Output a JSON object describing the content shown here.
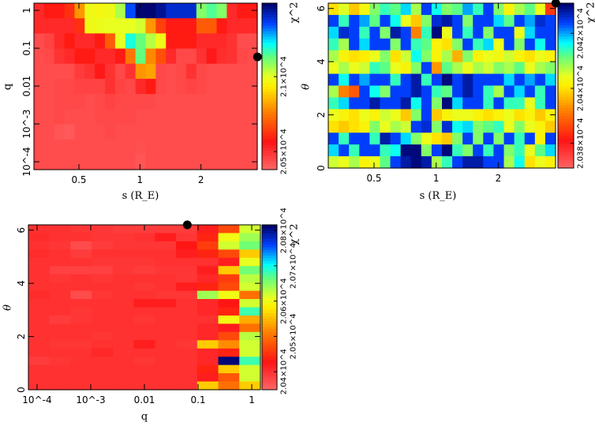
{
  "colors": {
    "palette": [
      "#ff6666",
      "#ff1414",
      "#ff8000",
      "#ffee00",
      "#e8ff20",
      "#60ff80",
      "#00ffff",
      "#0040ff",
      "#000066"
    ],
    "marker": "#000000"
  },
  "chart_data": [
    {
      "type": "heatmap",
      "xlabel": "s (R_E)",
      "ylabel": "q",
      "colorbar_label": "χ^2",
      "xscale": "log",
      "yscale": "log",
      "xlim": [
        0.3,
        3.79
      ],
      "ylim": [
        6.2e-05,
        1.55
      ],
      "xticks": [
        {
          "v": 0.5,
          "t": "0.5"
        },
        {
          "v": 1,
          "t": "1"
        },
        {
          "v": 2,
          "t": "2"
        }
      ],
      "yticks": [
        {
          "v": 1,
          "t": "1"
        },
        {
          "v": 0.1,
          "t": "0.1"
        },
        {
          "v": 0.01,
          "t": "0.01"
        },
        {
          "v": 0.001,
          "t": "10^-3"
        },
        {
          "v": 0.0001,
          "t": "10^-4"
        }
      ],
      "crange": [
        20380,
        21490
      ],
      "cticks": [
        {
          "v": 20500,
          "t": "2.05×10^4"
        },
        {
          "v": 21000,
          "t": "2.1×10^4"
        }
      ],
      "best_fit": {
        "x": 3.8,
        "y": 0.059
      },
      "rows_top_to_bottom": [
        [
          20520,
          20580,
          20580,
          20620,
          20800,
          20980,
          20970,
          20980,
          21060,
          21350,
          21480,
          21480,
          21450,
          21400,
          21400,
          21400,
          21100,
          21150,
          21100,
          20520,
          20580,
          20580
        ],
        [
          20520,
          20520,
          20520,
          20520,
          20620,
          20980,
          20990,
          21000,
          21000,
          21000,
          21020,
          20800,
          20650,
          20580,
          20580,
          20580,
          20700,
          20700,
          20580,
          20520,
          20520,
          20520
        ],
        [
          20440,
          20460,
          20520,
          20580,
          20520,
          20520,
          20580,
          20700,
          21000,
          21200,
          21130,
          21050,
          20980,
          20580,
          20580,
          20580,
          20520,
          20520,
          20520,
          20500,
          20440,
          20440
        ],
        [
          20440,
          20450,
          20500,
          20520,
          20580,
          20580,
          20520,
          20520,
          20580,
          20750,
          21130,
          20780,
          20680,
          20520,
          20450,
          20450,
          20500,
          20560,
          20510,
          20500,
          20450,
          20440
        ],
        [
          20440,
          20440,
          20440,
          20440,
          20480,
          20500,
          20560,
          20500,
          20450,
          20500,
          20800,
          20820,
          20450,
          20440,
          20450,
          20500,
          20450,
          20440,
          20440,
          20440,
          20440,
          20440
        ],
        [
          20440,
          20440,
          20450,
          20450,
          20460,
          20460,
          20460,
          20500,
          20460,
          20450,
          20520,
          20580,
          20450,
          20440,
          20450,
          20460,
          20450,
          20440,
          20440,
          20440,
          20440,
          20440
        ],
        [
          20440,
          20440,
          20450,
          20450,
          20450,
          20440,
          20450,
          20460,
          20450,
          20450,
          20450,
          20450,
          20440,
          20440,
          20440,
          20440,
          20440,
          20440,
          20440,
          20440,
          20440,
          20440
        ],
        [
          20440,
          20440,
          20450,
          20440,
          20440,
          20440,
          20450,
          20450,
          20450,
          20450,
          20440,
          20440,
          20440,
          20440,
          20440,
          20440,
          20440,
          20440,
          20440,
          20440,
          20440,
          20440
        ],
        [
          20440,
          20440,
          20420,
          20410,
          20440,
          20440,
          20440,
          20450,
          20440,
          20440,
          20440,
          20440,
          20440,
          20440,
          20440,
          20440,
          20440,
          20440,
          20440,
          20440,
          20440,
          20440
        ],
        [
          20440,
          20440,
          20440,
          20440,
          20440,
          20440,
          20440,
          20440,
          20440,
          20440,
          20430,
          20440,
          20440,
          20440,
          20440,
          20440,
          20440,
          20440,
          20440,
          20440,
          20440,
          20440
        ],
        [
          20440,
          20440,
          20440,
          20440,
          20440,
          20440,
          20440,
          20440,
          20440,
          20440,
          20420,
          20440,
          20440,
          20440,
          20440,
          20440,
          20440,
          20440,
          20440,
          20440,
          20440,
          20440
        ]
      ]
    },
    {
      "type": "heatmap",
      "xlabel": "s (R_E)",
      "ylabel": "θ",
      "colorbar_label": "χ^2",
      "xscale": "log",
      "yscale": "linear",
      "xlim": [
        0.3,
        3.79
      ],
      "ylim": [
        0,
        6.2
      ],
      "xticks": [
        {
          "v": 0.5,
          "t": "0.5"
        },
        {
          "v": 1,
          "t": "1"
        },
        {
          "v": 2,
          "t": "2"
        }
      ],
      "yticks": [
        {
          "v": 0,
          "t": "0"
        },
        {
          "v": 2,
          "t": "2"
        },
        {
          "v": 4,
          "t": "4"
        },
        {
          "v": 6,
          "t": "6"
        }
      ],
      "crange": [
        20371,
        20431
      ],
      "cticks": [
        {
          "v": 20380,
          "t": "2.038×10^4"
        },
        {
          "v": 20400,
          "t": "2.04×10^4"
        },
        {
          "v": 20420,
          "t": "2.042×10^4"
        }
      ],
      "best_fit": {
        "x": 3.8,
        "y": 6.2
      },
      "rows_top_to_bottom": [
        [
          20400,
          20405,
          20398,
          20403,
          20410,
          20414,
          20412,
          20418,
          20408,
          20424,
          20416,
          20410,
          20412,
          20420,
          20414,
          20424,
          20410,
          20402,
          20408,
          20412,
          20404,
          20385
        ],
        [
          20424,
          20414,
          20424,
          20420,
          20412,
          20424,
          20416,
          20404,
          20398,
          20410,
          20426,
          20428,
          20424,
          20410,
          20424,
          20424,
          20418,
          20412,
          20424,
          20420,
          20426,
          20424
        ],
        [
          20418,
          20426,
          20424,
          20414,
          20424,
          20410,
          20428,
          20424,
          20392,
          20414,
          20430,
          20404,
          20424,
          20414,
          20424,
          20410,
          20424,
          20424,
          20404,
          20418,
          20424,
          20424
        ],
        [
          20414,
          20408,
          20424,
          20418,
          20424,
          20424,
          20410,
          20424,
          20414,
          20412,
          20402,
          20400,
          20410,
          20424,
          20414,
          20418,
          20404,
          20424,
          20410,
          20424,
          20416,
          20424
        ],
        [
          20408,
          20402,
          20400,
          20401,
          20404,
          20410,
          20400,
          20406,
          20416,
          20410,
          20402,
          20408,
          20396,
          20410,
          20402,
          20404,
          20403,
          20406,
          20402,
          20400,
          20404,
          20402
        ],
        [
          20404,
          20408,
          20404,
          20406,
          20414,
          20412,
          20404,
          20402,
          20410,
          20424,
          20394,
          20412,
          20408,
          20404,
          20408,
          20406,
          20410,
          20408,
          20412,
          20404,
          20408,
          20410
        ],
        [
          20424,
          20416,
          20424,
          20420,
          20424,
          20424,
          20414,
          20424,
          20428,
          20414,
          20424,
          20430,
          20424,
          20428,
          20424,
          20424,
          20424,
          20418,
          20424,
          20420,
          20424,
          20418
        ],
        [
          20408,
          20392,
          20388,
          20424,
          20416,
          20410,
          20424,
          20424,
          20428,
          20424,
          20414,
          20412,
          20424,
          20428,
          20424,
          20414,
          20408,
          20424,
          20418,
          20424,
          20414,
          20424
        ],
        [
          20414,
          20418,
          20424,
          20424,
          20428,
          20424,
          20424,
          20428,
          20416,
          20424,
          20410,
          20430,
          20418,
          20424,
          20424,
          20414,
          20424,
          20414,
          20414,
          20404,
          20414,
          20424
        ],
        [
          20404,
          20402,
          20400,
          20404,
          20402,
          20406,
          20404,
          20398,
          20410,
          20424,
          20398,
          20402,
          20404,
          20404,
          20402,
          20400,
          20402,
          20404,
          20400,
          20402,
          20398,
          20402
        ],
        [
          20400,
          20398,
          20400,
          20402,
          20410,
          20404,
          20408,
          20406,
          20424,
          20426,
          20410,
          20426,
          20416,
          20418,
          20410,
          20412,
          20414,
          20404,
          20410,
          20404,
          20402,
          20398
        ],
        [
          20424,
          20414,
          20424,
          20424,
          20414,
          20428,
          20424,
          20418,
          20410,
          20404,
          20400,
          20398,
          20410,
          20424,
          20410,
          20424,
          20410,
          20424,
          20414,
          20424,
          20402,
          20424
        ],
        [
          20418,
          20424,
          20414,
          20424,
          20424,
          20414,
          20416,
          20430,
          20430,
          20410,
          20424,
          20430,
          20414,
          20410,
          20424,
          20414,
          20424,
          20410,
          20414,
          20404,
          20412,
          20418
        ],
        [
          20406,
          20404,
          20408,
          20402,
          20404,
          20412,
          20424,
          20428,
          20430,
          20428,
          20408,
          20414,
          20424,
          20428,
          20428,
          20424,
          20424,
          20408,
          20416,
          20400,
          20404,
          20402
        ]
      ]
    },
    {
      "type": "heatmap",
      "xlabel": "q",
      "ylabel": "θ",
      "colorbar_label": "χ^2",
      "xscale": "log",
      "yscale": "linear",
      "xlim": [
        6.9e-05,
        1.45
      ],
      "ylim": [
        0,
        6.2
      ],
      "xticks": [
        {
          "v": 0.0001,
          "t": "10^-4"
        },
        {
          "v": 0.001,
          "t": "10^-3"
        },
        {
          "v": 0.01,
          "t": "0.01"
        },
        {
          "v": 0.1,
          "t": "0.1"
        },
        {
          "v": 1,
          "t": "1"
        }
      ],
      "yticks": [
        {
          "v": 0,
          "t": "0"
        },
        {
          "v": 2,
          "t": "2"
        },
        {
          "v": 4,
          "t": "4"
        },
        {
          "v": 6,
          "t": "6"
        }
      ],
      "crange": [
        20349,
        20816
      ],
      "cticks": [
        {
          "v": 20400,
          "t": "2.04×10^4"
        },
        {
          "v": 20500,
          "t": "2.05×10^4"
        },
        {
          "v": 20600,
          "t": "2.06×10^4"
        },
        {
          "v": 20700,
          "t": "2.07×10^4"
        },
        {
          "v": 20800,
          "t": "2.08×10^4"
        }
      ],
      "best_fit": {
        "x": 0.063,
        "y": 6.2
      },
      "rows_top_to_bottom": [
        [
          20400,
          20400,
          20395,
          20395,
          20390,
          20390,
          20390,
          20390,
          20420,
          20470,
          20620
        ],
        [
          20405,
          20400,
          20400,
          20395,
          20395,
          20400,
          20420,
          20395,
          20440,
          20600,
          20640
        ],
        [
          20400,
          20395,
          20375,
          20390,
          20395,
          20395,
          20395,
          20430,
          20460,
          20620,
          20660
        ],
        [
          20405,
          20400,
          20390,
          20400,
          20400,
          20400,
          20400,
          20420,
          20440,
          20470,
          20560
        ],
        [
          20400,
          20400,
          20400,
          20395,
          20395,
          20395,
          20400,
          20400,
          20400,
          20420,
          20610
        ],
        [
          20400,
          20385,
          20385,
          20385,
          20395,
          20390,
          20395,
          20395,
          20420,
          20560,
          20660
        ],
        [
          20400,
          20395,
          20400,
          20395,
          20400,
          20400,
          20400,
          20395,
          20410,
          20460,
          20630
        ],
        [
          20400,
          20400,
          20400,
          20400,
          20400,
          20395,
          20400,
          20420,
          20440,
          20470,
          20620
        ],
        [
          20405,
          20400,
          20375,
          20395,
          20400,
          20400,
          20395,
          20395,
          20640,
          20600,
          20500
        ],
        [
          20400,
          20400,
          20400,
          20400,
          20400,
          20420,
          20420,
          20400,
          20410,
          20430,
          20620
        ],
        [
          20400,
          20400,
          20395,
          20400,
          20400,
          20400,
          20400,
          20400,
          20410,
          20440,
          20680
        ],
        [
          20400,
          20390,
          20395,
          20400,
          20400,
          20395,
          20400,
          20400,
          20400,
          20600,
          20540
        ],
        [
          20400,
          20400,
          20400,
          20400,
          20400,
          20400,
          20400,
          20400,
          20410,
          20420,
          20500
        ],
        [
          20400,
          20400,
          20400,
          20395,
          20400,
          20400,
          20400,
          20400,
          20410,
          20470,
          20630
        ],
        [
          20400,
          20395,
          20395,
          20400,
          20400,
          20420,
          20400,
          20395,
          20560,
          20520,
          20620
        ],
        [
          20400,
          20400,
          20400,
          20410,
          20400,
          20400,
          20400,
          20400,
          20410,
          20440,
          20620
        ],
        [
          20390,
          20395,
          20400,
          20400,
          20400,
          20395,
          20400,
          20400,
          20410,
          20810,
          20680
        ],
        [
          20400,
          20400,
          20400,
          20400,
          20400,
          20400,
          20400,
          20400,
          20440,
          20560,
          20620
        ],
        [
          20400,
          20400,
          20400,
          20400,
          20400,
          20400,
          20400,
          20400,
          20420,
          20480,
          20620
        ],
        [
          20400,
          20400,
          20400,
          20400,
          20400,
          20400,
          20400,
          20400,
          20560,
          20500,
          20560
        ]
      ]
    }
  ]
}
